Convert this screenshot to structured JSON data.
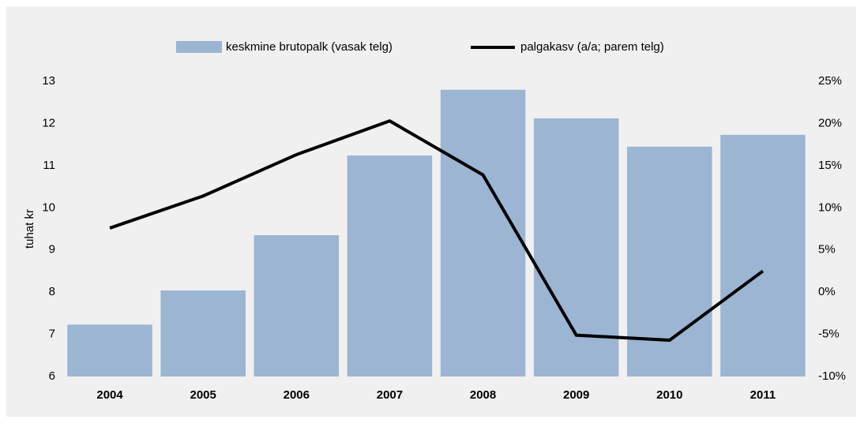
{
  "chart_data": {
    "type": "bar",
    "categories": [
      "2004",
      "2005",
      "2006",
      "2007",
      "2008",
      "2009",
      "2010",
      "2011"
    ],
    "ylabel": "tuhat kr",
    "ylim": [
      6,
      13
    ],
    "yticks": [
      6,
      7,
      8,
      9,
      10,
      11,
      12,
      13
    ],
    "y2lim": [
      -10,
      25
    ],
    "y2ticks": [
      {
        "value": -10,
        "label": "-10%"
      },
      {
        "value": -5,
        "label": "-5%"
      },
      {
        "value": 0,
        "label": "0%"
      },
      {
        "value": 5,
        "label": "5%"
      },
      {
        "value": 10,
        "label": "10%"
      },
      {
        "value": 15,
        "label": "15%"
      },
      {
        "value": 20,
        "label": "20%"
      },
      {
        "value": 25,
        "label": "25%"
      }
    ],
    "series": [
      {
        "name": "keskmine brutopalk (vasak telg)",
        "type": "bar",
        "color": "#9bb5d3",
        "values": [
          7.23,
          8.04,
          9.35,
          11.24,
          12.8,
          12.12,
          11.45,
          11.73
        ]
      },
      {
        "name": "palgakasv (a/a; parem telg)",
        "type": "line",
        "axis": "y2",
        "color": "#000000",
        "values": [
          7.6,
          11.4,
          16.3,
          20.3,
          13.9,
          -5.1,
          -5.7,
          2.5
        ]
      }
    ]
  }
}
